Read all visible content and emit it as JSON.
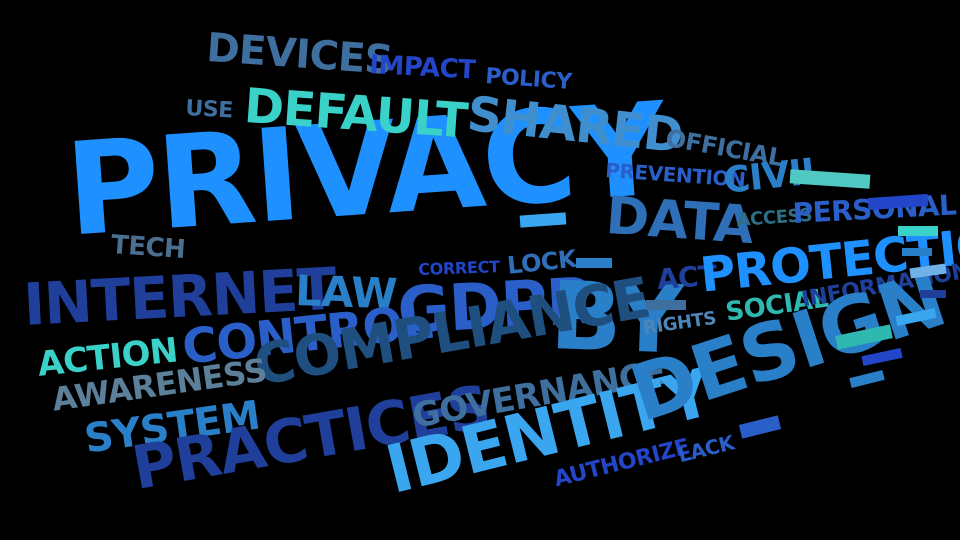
{
  "palette": {
    "background": "#000000",
    "bright_blue": "#1e90ff",
    "sky_blue": "#3aa6f0",
    "mid_blue": "#2a7fc9",
    "steel_blue": "#3f6f9e",
    "navy": "#1f3f9a",
    "royal": "#2345c8",
    "slate": "#4a6f8f",
    "aqua": "#3ad1c9",
    "teal": "#2fb8b0",
    "pale_teal": "#4fc9c2",
    "grey_blue": "#5c7f9a",
    "dark_teal": "#2f6f86",
    "light_blue": "#6fb2e8"
  },
  "words": [
    {
      "text": "PRIVACY"
    },
    {
      "text": "DEVICES"
    },
    {
      "text": "IMPACT"
    },
    {
      "text": "POLICY"
    },
    {
      "text": "USE"
    },
    {
      "text": "DEFAULT"
    },
    {
      "text": "SHARED"
    },
    {
      "text": "OFFICIAL"
    },
    {
      "text": "PREVENTION"
    },
    {
      "text": "CIVIL"
    },
    {
      "text": "DATA"
    },
    {
      "text": "ACCESS"
    },
    {
      "text": "PERSONAL"
    },
    {
      "text": "TECH"
    },
    {
      "text": "INTERNET"
    },
    {
      "text": "LAW"
    },
    {
      "text": "CORRECT"
    },
    {
      "text": "LOCK"
    },
    {
      "text": "GDPR"
    },
    {
      "text": "BY"
    },
    {
      "text": "ACT"
    },
    {
      "text": "PROTECTION"
    },
    {
      "text": "ACTION"
    },
    {
      "text": "CONTROL"
    },
    {
      "text": "COMPLIANCE"
    },
    {
      "text": "SOCIAL"
    },
    {
      "text": "INFORMATION"
    },
    {
      "text": "RIGHTS"
    },
    {
      "text": "AWARENESS"
    },
    {
      "text": "SYSTEM"
    },
    {
      "text": "PRACTICES"
    },
    {
      "text": "GOVERNANCE"
    },
    {
      "text": "IDENTITY"
    },
    {
      "text": "DESIGN"
    },
    {
      "text": "AUTHORIZE"
    },
    {
      "text": "LACK"
    }
  ]
}
